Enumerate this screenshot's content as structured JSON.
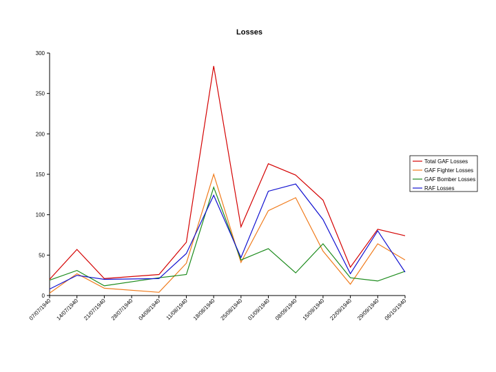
{
  "chart_data": {
    "type": "line",
    "title": "Losses",
    "xlabel": "",
    "ylabel": "",
    "ylim": [
      0,
      300
    ],
    "yticks": [
      0,
      50,
      100,
      150,
      200,
      250,
      300
    ],
    "grid": false,
    "legend_position": "right",
    "categories": [
      "07/07/1940",
      "14/07/1940",
      "21/07/1940",
      "28/07/1940",
      "04/08/1940",
      "11/08/1940",
      "18/08/1940",
      "25/08/1940",
      "01/09/1940",
      "08/09/1940",
      "15/09/1940",
      "22/09/1940",
      "29/09/1940",
      "06/10/1940"
    ],
    "series": [
      {
        "name": "Total GAF Losses",
        "color": "#d40000",
        "values": [
          null,
          57,
          21,
          null,
          26,
          66,
          284,
          85,
          163,
          149,
          118,
          35,
          82,
          74
        ]
      },
      {
        "name": "GAF Fighter Losses",
        "color": "#f07a1a",
        "values": [
          null,
          27,
          9,
          null,
          4,
          40,
          150,
          41,
          105,
          121,
          55,
          14,
          64,
          44
        ]
      },
      {
        "name": "GAF Bomber Losses",
        "color": "#1a8a1a",
        "values": [
          null,
          31,
          12,
          null,
          22,
          26,
          134,
          44,
          58,
          28,
          64,
          22,
          18,
          30
        ]
      },
      {
        "name": "RAF Losses",
        "color": "#1010d0",
        "values": [
          null,
          25,
          20,
          null,
          21,
          52,
          124,
          47,
          129,
          138,
          94,
          27,
          80,
          29
        ]
      }
    ],
    "plot_edge_values": [
      {
        "series": "Total GAF Losses",
        "at": "07/07/1940",
        "value": 20
      },
      {
        "series": "GAF Fighter Losses",
        "at": "07/07/1940",
        "value": 3
      },
      {
        "series": "GAF Bomber Losses",
        "at": "07/07/1940",
        "value": 19
      },
      {
        "series": "RAF Losses",
        "at": "07/07/1940",
        "value": 8
      }
    ]
  }
}
